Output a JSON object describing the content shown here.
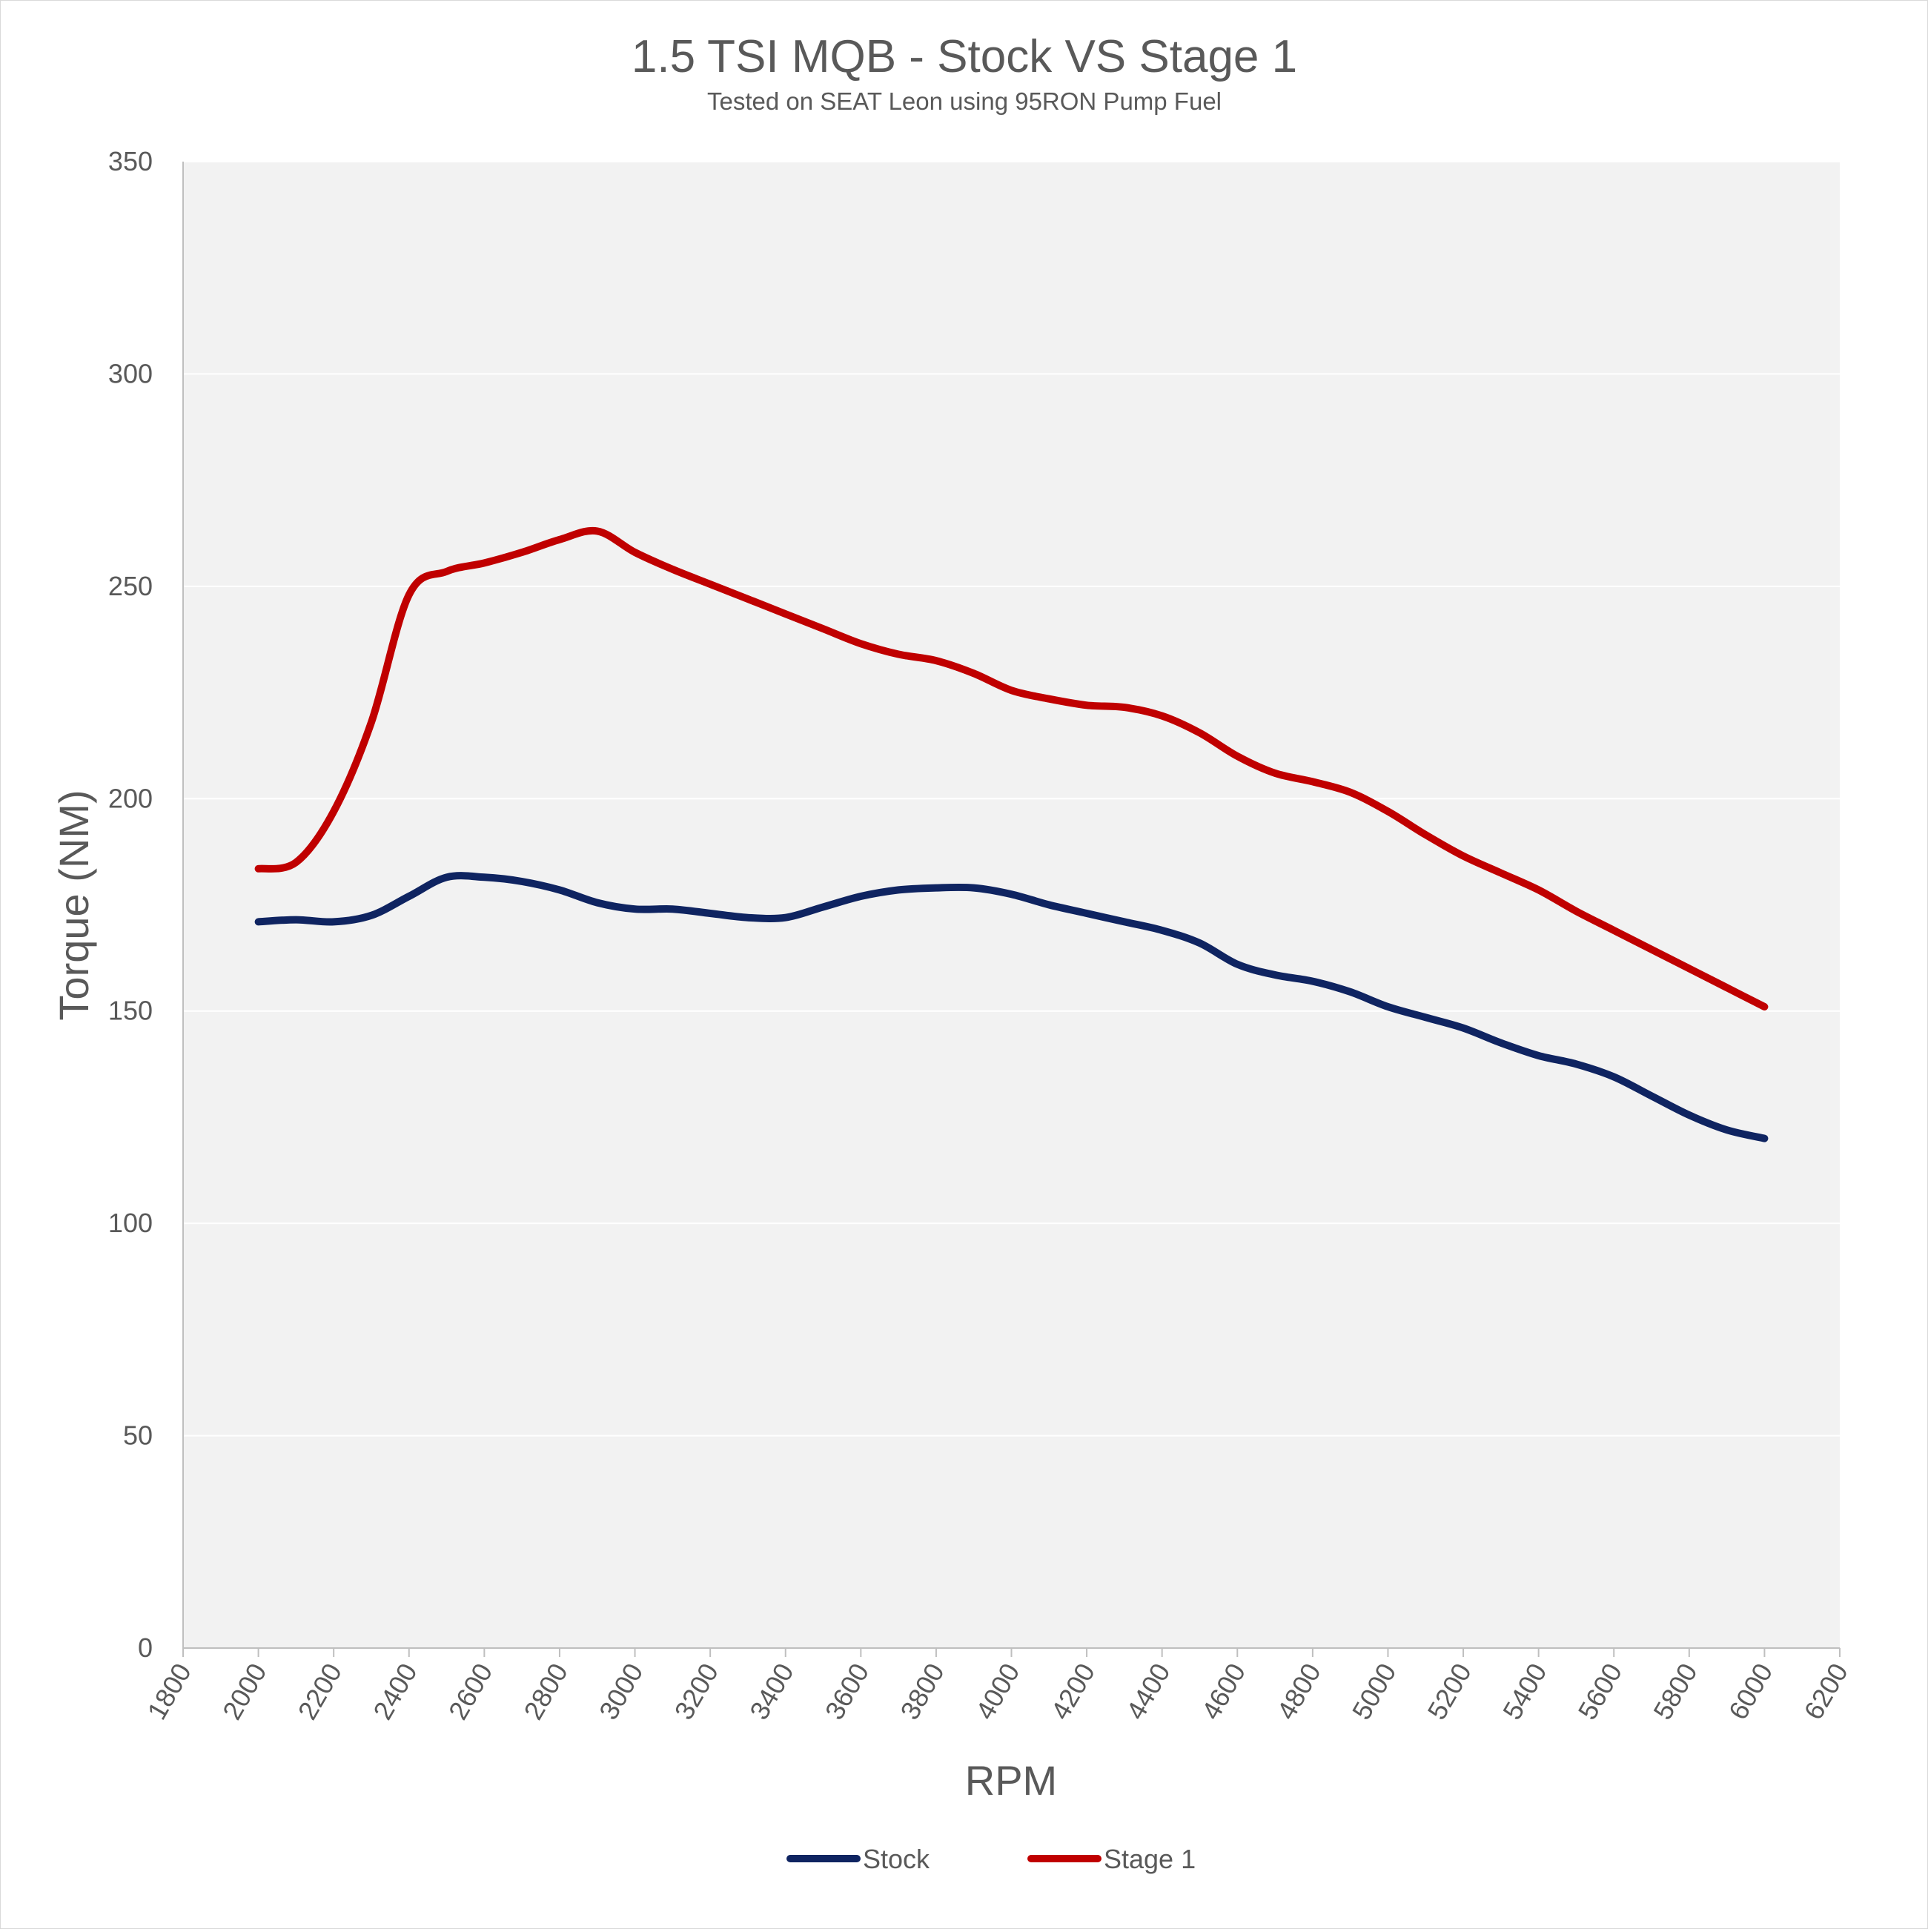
{
  "chart_data": {
    "type": "line",
    "title": "1.5 TSI MQB - Stock VS Stage 1",
    "subtitle": "Tested on SEAT Leon using 95RON Pump Fuel",
    "xlabel": "RPM",
    "ylabel": "Torque (NM)",
    "xlim": [
      1800,
      6200
    ],
    "ylim": [
      0,
      350
    ],
    "xticks": [
      1800,
      2000,
      2200,
      2400,
      2600,
      2800,
      3000,
      3200,
      3400,
      3600,
      3800,
      4000,
      4200,
      4400,
      4600,
      4800,
      5000,
      5200,
      5400,
      5600,
      5800,
      6000,
      6200
    ],
    "yticks": [
      0,
      50,
      100,
      150,
      200,
      250,
      300,
      350
    ],
    "grid": "horizontal",
    "legend_position": "bottom",
    "series": [
      {
        "name": "Stock",
        "color": "#0f2461",
        "x": [
          2000,
          2100,
          2200,
          2300,
          2400,
          2500,
          2600,
          2700,
          2800,
          2900,
          3000,
          3100,
          3200,
          3300,
          3400,
          3500,
          3600,
          3700,
          3800,
          3900,
          4000,
          4100,
          4200,
          4300,
          4400,
          4500,
          4600,
          4700,
          4800,
          4900,
          5000,
          5100,
          5200,
          5300,
          5400,
          5500,
          5600,
          5700,
          5800,
          5900,
          6000
        ],
        "values": [
          171,
          171.5,
          171,
          172.5,
          177,
          181.5,
          181.5,
          180.5,
          178.5,
          175.5,
          174,
          174,
          173,
          172,
          172,
          174.5,
          177,
          178.5,
          179,
          179,
          177.5,
          175,
          173,
          171,
          169,
          166,
          161,
          158.5,
          157,
          154.5,
          151,
          148.5,
          146,
          142.5,
          139.5,
          137.5,
          134.5,
          130,
          125.5,
          122,
          120
        ]
      },
      {
        "name": "Stage 1",
        "color": "#c00000",
        "x": [
          2000,
          2100,
          2200,
          2300,
          2400,
          2500,
          2600,
          2700,
          2800,
          2900,
          3000,
          3100,
          3200,
          3300,
          3400,
          3500,
          3600,
          3700,
          3800,
          3900,
          4000,
          4100,
          4200,
          4300,
          4400,
          4500,
          4600,
          4700,
          4800,
          4900,
          5000,
          5100,
          5200,
          5300,
          5400,
          5500,
          5600,
          5700,
          5800,
          5900,
          6000
        ],
        "values": [
          183.5,
          185,
          197,
          218,
          248,
          253.5,
          255.5,
          258,
          261,
          263,
          258,
          254,
          250.5,
          247,
          243.5,
          240,
          236.5,
          234,
          232.5,
          229.5,
          225.5,
          223.5,
          222,
          221.5,
          219.5,
          215.5,
          210,
          206,
          204,
          201.5,
          197,
          191.5,
          186.5,
          182.5,
          178.5,
          173.5,
          169,
          164.5,
          160,
          155.5,
          151
        ]
      }
    ]
  }
}
